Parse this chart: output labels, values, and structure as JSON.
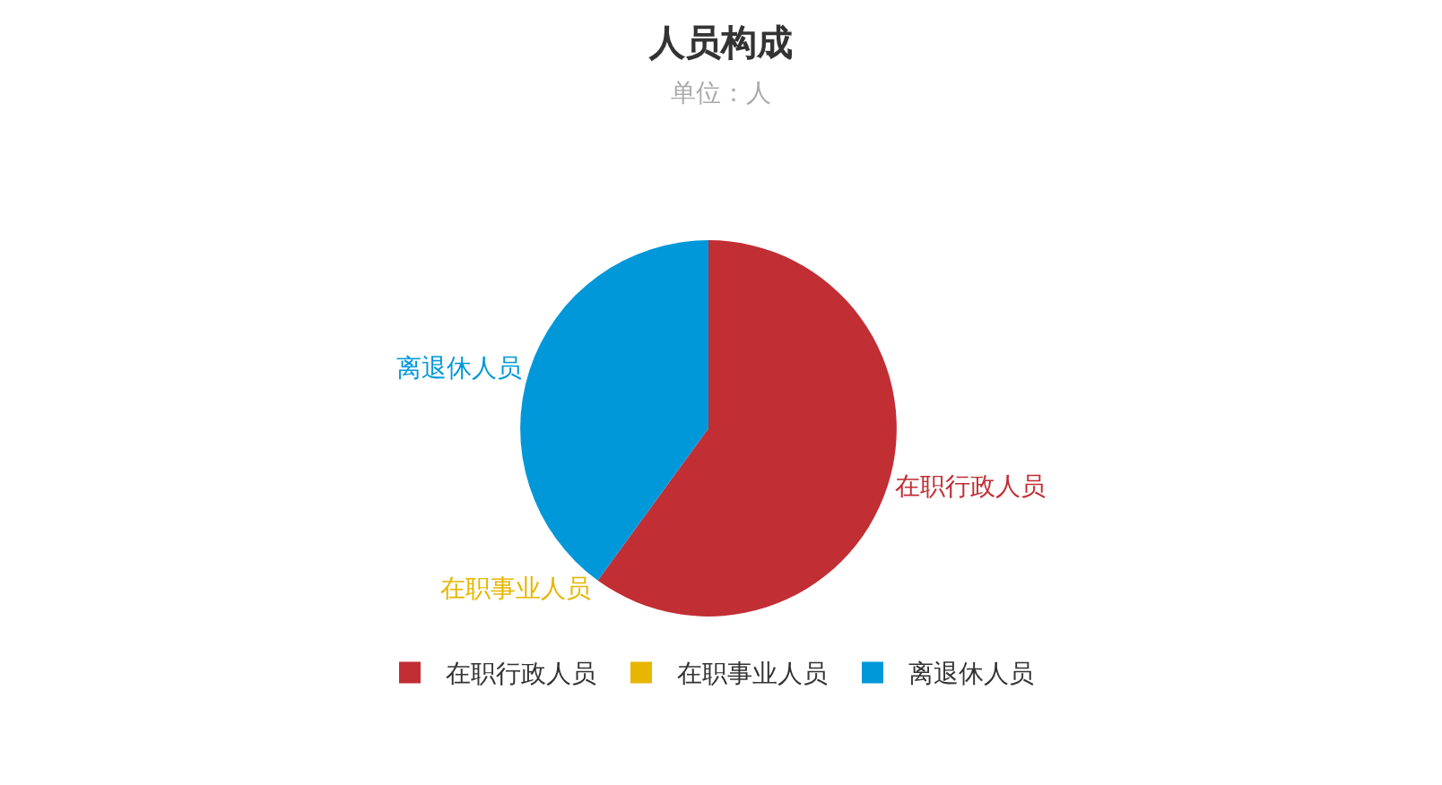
{
  "chart_data": {
    "type": "pie",
    "title": "人员构成",
    "subtitle": "单位：人",
    "categories": [
      "在职行政人员",
      "在职事业人员",
      "离退休人员"
    ],
    "values": [
      60,
      0,
      40
    ],
    "colors": [
      "#c12e34",
      "#e6b600",
      "#0098d9"
    ],
    "legend": "bottom"
  }
}
